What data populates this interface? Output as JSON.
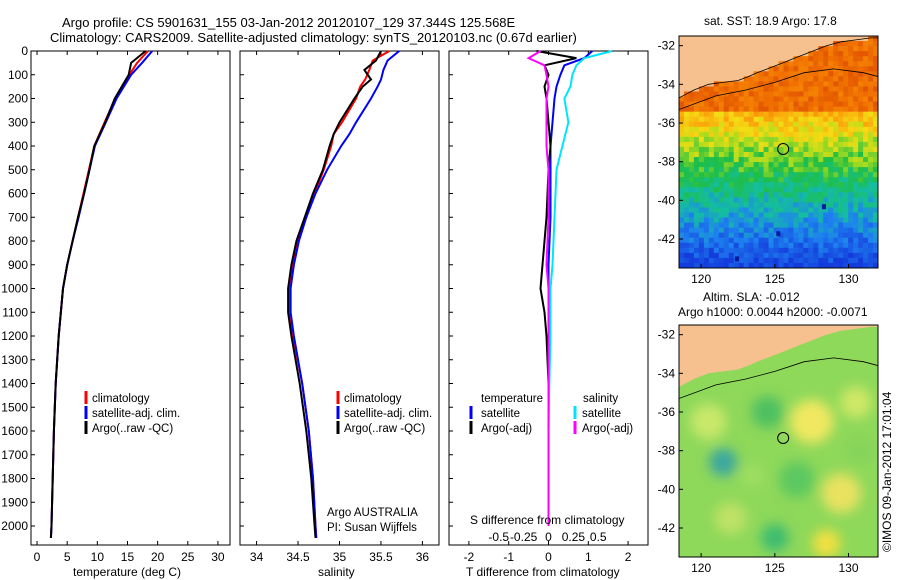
{
  "header": {
    "title_line1": "Argo profile: CS 5901631_155 03-Jan-2012 20120107_129 37.344S 125.568E",
    "title_line2": "Climatology: CARS2009. Satellite-adjusted climatology: synTS_20120103.nc (0.67d earlier)"
  },
  "colors": {
    "climatology": "#ff0000",
    "satellite": "#0000ff",
    "argo": "#000000",
    "salinity_satellite": "#00e5ff",
    "salinity_argo": "#ff00ff",
    "land": "#f7c08f"
  },
  "chart_data": [
    {
      "id": "temperature",
      "type": "line",
      "xlabel": "temperature (deg C)",
      "ylabel": "",
      "xlim": [
        -1,
        32
      ],
      "ylim": [
        2080,
        0
      ],
      "xticks": [
        "0",
        "5",
        "10",
        "15",
        "20",
        "25",
        "30"
      ],
      "xtick_values": [
        0,
        5,
        10,
        15,
        20,
        25,
        30
      ],
      "yticks": [
        "0",
        "100",
        "200",
        "300",
        "400",
        "500",
        "600",
        "700",
        "800",
        "900",
        "1000",
        "1100",
        "1200",
        "1300",
        "1400",
        "1500",
        "1600",
        "1700",
        "1800",
        "1900",
        "2000"
      ],
      "ytick_values": [
        0,
        100,
        200,
        300,
        400,
        500,
        600,
        700,
        800,
        900,
        1000,
        1100,
        1200,
        1300,
        1400,
        1500,
        1600,
        1700,
        1800,
        1900,
        2000
      ],
      "legend": [
        "climatology",
        "satellite-adj. clim.",
        "Argo(..raw -QC)"
      ],
      "depth": [
        0,
        50,
        100,
        200,
        300,
        400,
        500,
        600,
        700,
        800,
        900,
        1000,
        1200,
        1400,
        1600,
        1800,
        2000,
        2050
      ],
      "series": [
        {
          "name": "climatology",
          "color": "#ff0000",
          "values": [
            18.4,
            16.6,
            15.3,
            13.0,
            11.2,
            9.5,
            8.6,
            7.7,
            6.8,
            5.9,
            5.0,
            4.3,
            3.6,
            3.1,
            2.8,
            2.6,
            2.4,
            2.3
          ]
        },
        {
          "name": "satellite-adj. clim.",
          "color": "#0000ff",
          "values": [
            19.1,
            17.4,
            15.6,
            13.2,
            11.4,
            9.6,
            8.7,
            7.8,
            6.9,
            5.9,
            5.0,
            4.3,
            3.6,
            3.1,
            2.8,
            2.6,
            2.4,
            2.3
          ]
        },
        {
          "name": "Argo(..raw -QC)",
          "color": "#000000",
          "values": [
            18.0,
            15.6,
            15.2,
            12.9,
            11.3,
            9.5,
            8.7,
            7.8,
            6.8,
            5.9,
            5.0,
            4.3,
            3.6,
            3.1,
            2.8,
            2.6,
            2.4,
            2.3
          ]
        }
      ]
    },
    {
      "id": "salinity",
      "type": "line",
      "xlabel": "salinity",
      "xlim": [
        33.8,
        36.2
      ],
      "ylim": [
        2080,
        0
      ],
      "xticks": [
        "34",
        "34.5",
        "35",
        "35.5",
        "36"
      ],
      "xtick_values": [
        34,
        34.5,
        35,
        35.5,
        36
      ],
      "legend": [
        "climatology",
        "satellite-adj. clim.",
        "Argo(..raw -QC)"
      ],
      "annotation": [
        "Argo AUSTRALIA",
        "PI: Susan Wijffels"
      ],
      "depth": [
        0,
        40,
        80,
        120,
        150,
        200,
        300,
        350,
        400,
        500,
        600,
        700,
        800,
        900,
        1000,
        1100,
        1200,
        1400,
        1600,
        1800,
        2000,
        2050
      ],
      "series": [
        {
          "name": "climatology",
          "color": "#ff0000",
          "values": [
            35.6,
            35.4,
            35.36,
            35.31,
            35.25,
            35.2,
            35.03,
            34.93,
            34.9,
            34.81,
            34.7,
            34.6,
            34.5,
            34.44,
            34.4,
            34.4,
            34.44,
            34.55,
            34.63,
            34.68,
            34.71,
            34.72
          ]
        },
        {
          "name": "satellite-adj. clim.",
          "color": "#0000ff",
          "values": [
            35.72,
            35.58,
            35.53,
            35.5,
            35.46,
            35.38,
            35.2,
            35.12,
            35.02,
            34.85,
            34.71,
            34.6,
            34.51,
            34.45,
            34.41,
            34.41,
            34.45,
            34.55,
            34.63,
            34.68,
            34.71,
            34.72
          ]
        },
        {
          "name": "Argo(..raw -QC)",
          "color": "#000000",
          "values": [
            35.5,
            35.44,
            35.3,
            35.38,
            35.28,
            35.18,
            35.0,
            34.93,
            34.88,
            34.8,
            34.68,
            34.58,
            34.48,
            34.42,
            34.38,
            34.38,
            34.42,
            34.52,
            34.6,
            34.66,
            34.7,
            34.71
          ]
        }
      ]
    },
    {
      "id": "difference",
      "type": "line",
      "xlabel": "T difference from climatology",
      "top_xlabel": "S difference from climatology",
      "xlim": [
        -2.5,
        2.5
      ],
      "ylim": [
        2080,
        0
      ],
      "xticks": [
        "-2",
        "-1",
        "0",
        "1",
        "2"
      ],
      "xtick_values": [
        -2,
        -1,
        0,
        1,
        2
      ],
      "top_xticks": [
        "-0.5",
        "-0.25",
        "0",
        "0.25",
        "0.5"
      ],
      "top_xtick_values": [
        -1.25,
        -0.625,
        0,
        0.625,
        1.25
      ],
      "legend_temperature_title": "temperature",
      "legend_temperature": [
        "satellite",
        "Argo(-adj)"
      ],
      "legend_salinity_title": "salinity",
      "legend_salinity": [
        "satellite",
        "Argo(-adj)"
      ],
      "depth": [
        0,
        30,
        60,
        100,
        150,
        200,
        300,
        400,
        500,
        700,
        900,
        1000,
        1100,
        1200,
        1400,
        1600,
        1800,
        2000
      ],
      "series": [
        {
          "name": "temperature satellite",
          "color": "#0000ff",
          "values": [
            1.1,
            0.9,
            0.4,
            0.3,
            0.2,
            0.15,
            0.1,
            0.05,
            0.05,
            0.05,
            0.0,
            0.0,
            0.0,
            0.0,
            0.0,
            0.0,
            0.0,
            0.0
          ]
        },
        {
          "name": "temperature Argo(-adj)",
          "color": "#000000",
          "values": [
            -0.3,
            0.7,
            -0.1,
            0.0,
            -0.1,
            -0.05,
            0.0,
            0.05,
            0.0,
            -0.05,
            -0.15,
            -0.2,
            -0.1,
            -0.05,
            0.0,
            0.0,
            0.0,
            0.0
          ]
        },
        {
          "name": "salinity satellite",
          "color": "#00e5ff",
          "values": [
            1.6,
            0.9,
            0.7,
            0.6,
            0.55,
            0.4,
            0.5,
            0.35,
            0.2,
            0.15,
            0.1,
            0.05,
            0.05,
            0.05,
            0.02,
            0.0,
            0.0,
            0.0
          ]
        },
        {
          "name": "salinity Argo(-adj)",
          "color": "#ff00ff",
          "values": [
            -0.2,
            -0.5,
            -0.1,
            -0.05,
            0.0,
            -0.05,
            -0.05,
            -0.05,
            0.0,
            0.0,
            -0.05,
            0.0,
            0.0,
            0.0,
            0.0,
            0.0,
            0.0,
            0.0
          ]
        }
      ]
    },
    {
      "id": "sst_map",
      "type": "heatmap",
      "title": "sat. SST: 18.9  Argo: 17.8",
      "xlim": [
        118.5,
        132
      ],
      "ylim": [
        -43.5,
        -31.5
      ],
      "xticks": [
        "120",
        "125",
        "130"
      ],
      "xtick_values": [
        120,
        125,
        130
      ],
      "yticks": [
        "-32",
        "-34",
        "-36",
        "-38",
        "-40",
        "-42"
      ],
      "ytick_values": [
        -32,
        -34,
        -36,
        -38,
        -40,
        -42
      ],
      "argo_position": {
        "lon": 125.568,
        "lat": -37.344
      }
    },
    {
      "id": "sla_map",
      "type": "heatmap",
      "title": "Altim. SLA: -0.012",
      "subtitle": "Argo h1000: 0.0044 h2000: -0.0071",
      "xlim": [
        118.5,
        132
      ],
      "ylim": [
        -43.5,
        -31.5
      ],
      "xticks": [
        "120",
        "125",
        "130"
      ],
      "xtick_values": [
        120,
        125,
        130
      ],
      "yticks": [
        "-32",
        "-34",
        "-36",
        "-38",
        "-40",
        "-42"
      ],
      "ytick_values": [
        -32,
        -34,
        -36,
        -38,
        -40,
        -42
      ],
      "argo_position": {
        "lon": 125.568,
        "lat": -37.344
      }
    }
  ],
  "footer": {
    "stamp": "©IMOS 09-Jan-2012 17:01:04"
  }
}
